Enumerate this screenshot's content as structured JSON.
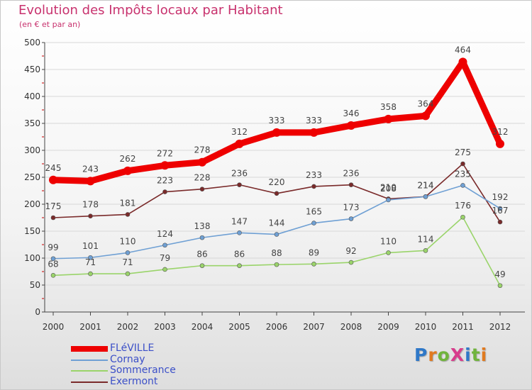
{
  "header": {
    "title": "Evolution des Impôts locaux par Habitant",
    "subtitle": "(en € et par an)"
  },
  "logo": {
    "text": "ProXiti",
    "letter_colors": [
      "#2f78c8",
      "#e07a20",
      "#70b43c",
      "#d83c8c",
      "#2f78c8",
      "#70b43c",
      "#e07a20"
    ]
  },
  "colors": {
    "title": "#c8326e",
    "grid": "#d8d8d8",
    "axis": "#444444",
    "tick_red": "#cc0000"
  },
  "chart_data": {
    "type": "line",
    "title": "Evolution des Impôts locaux par Habitant",
    "subtitle": "(en € et par an)",
    "x": [
      "2000",
      "2001",
      "2002",
      "2003",
      "2004",
      "2005",
      "2006",
      "2007",
      "2008",
      "2009",
      "2010",
      "2011",
      "2012"
    ],
    "ylim": [
      0,
      500
    ],
    "yticks": [
      0,
      50,
      100,
      150,
      200,
      250,
      300,
      350,
      400,
      450,
      500
    ],
    "grid": true,
    "legend_position": "bottom-left",
    "series": [
      {
        "name": "FLéVILLE",
        "color": "#ee0000",
        "values": [
          245,
          243,
          262,
          272,
          278,
          312,
          333,
          333,
          346,
          358,
          364,
          464,
          312
        ]
      },
      {
        "name": "Cornay",
        "color": "#6fa0d4",
        "values": [
          99,
          101,
          110,
          124,
          138,
          147,
          144,
          165,
          173,
          208,
          214,
          235,
          192
        ]
      },
      {
        "name": "Sommerance",
        "color": "#9ad46a",
        "values": [
          68,
          71,
          71,
          79,
          86,
          86,
          88,
          89,
          92,
          110,
          114,
          176,
          49
        ]
      },
      {
        "name": "Exermont",
        "color": "#7a2a2a",
        "values": [
          175,
          178,
          181,
          223,
          228,
          236,
          220,
          233,
          236,
          210,
          214,
          275,
          167
        ]
      }
    ]
  }
}
